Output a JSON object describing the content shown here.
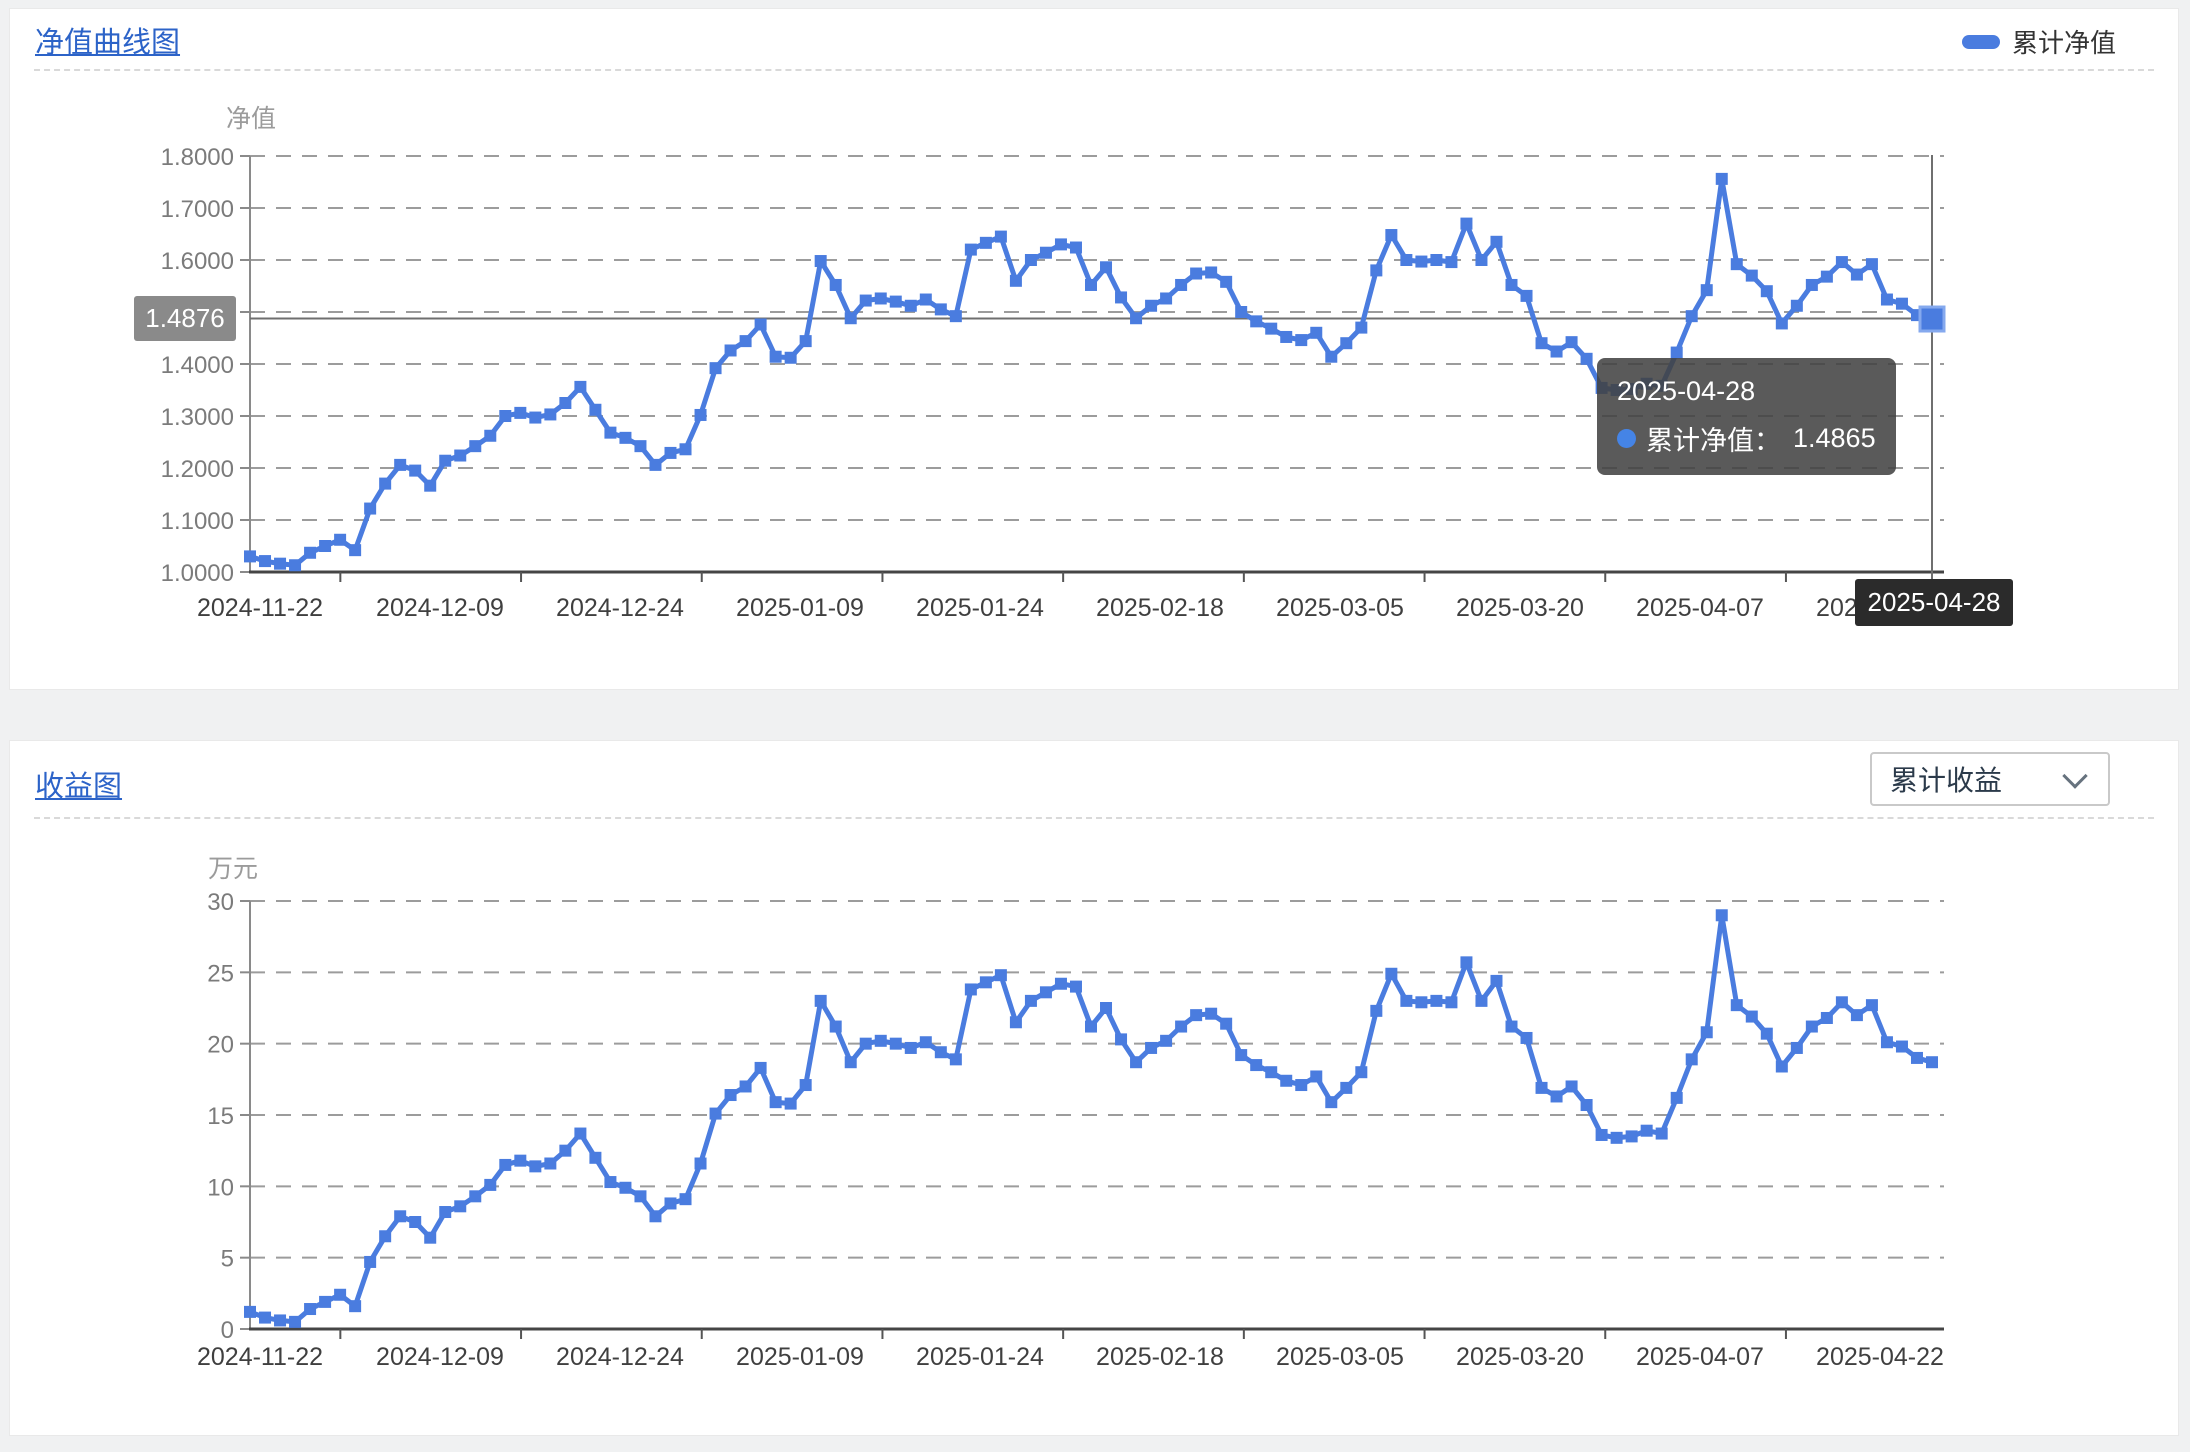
{
  "nav_panel": {
    "title": "净值曲线图",
    "legend_label": "累计净值",
    "y_axis_title": "净值",
    "y_pointer_label": "1.4876",
    "x_pointer_label": "2025-04-28",
    "tooltip": {
      "date": "2025-04-28",
      "series_label": "累计净值：",
      "value": "1.4865"
    }
  },
  "profit_panel": {
    "title": "收益图",
    "dropdown_value": "累计收益",
    "y_axis_title": "万元"
  },
  "colors": {
    "series_blue": "#4a7cdf",
    "highlight_marker_border": "#85a9ee",
    "link_blue": "#2c63c8",
    "tooltip_dot_blue": "#4584e6",
    "grid_gray": "#9c9c9c",
    "pointer_gray": "#6f6f6f",
    "y_badge_bg": "#8a8a8a",
    "x_badge_bg": "#2b2b2b"
  },
  "chart_data": [
    {
      "type": "line",
      "title": "净值曲线图",
      "xlabel": "",
      "ylabel": "净值",
      "ylim": [
        1.0,
        1.8
      ],
      "grid": "dashed-horizontal",
      "legend_position": "top-right",
      "legend": [
        "累计净值"
      ],
      "y_tick_labels": [
        "1.8000",
        "1.7000",
        "1.6000",
        "1.5000",
        "1.4000",
        "1.3000",
        "1.2000",
        "1.1000",
        "1.0000"
      ],
      "x_tick_labels": [
        "2024-11-22",
        "2024-12-09",
        "2024-12-24",
        "2025-01-09",
        "2025-01-24",
        "2025-02-18",
        "2025-03-05",
        "2025-03-20",
        "2025-04-07",
        "2025-04-22"
      ],
      "axis_pointer": {
        "y_value": 1.4876,
        "y_label": "1.4876",
        "x_label": "2025-04-28"
      },
      "highlighted_point": {
        "date": "2025-04-28",
        "value": 1.4865
      },
      "series": [
        {
          "name": "累计净值",
          "color": "#4a7cdf",
          "values": [
            1.03,
            1.021,
            1.016,
            1.013,
            1.037,
            1.05,
            1.062,
            1.042,
            1.122,
            1.17,
            1.206,
            1.195,
            1.166,
            1.214,
            1.224,
            1.242,
            1.262,
            1.3,
            1.306,
            1.297,
            1.303,
            1.325,
            1.356,
            1.312,
            1.268,
            1.258,
            1.242,
            1.206,
            1.229,
            1.236,
            1.302,
            1.392,
            1.426,
            1.444,
            1.476,
            1.414,
            1.412,
            1.444,
            1.598,
            1.552,
            1.488,
            1.522,
            1.526,
            1.52,
            1.512,
            1.524,
            1.505,
            1.492,
            1.62,
            1.633,
            1.645,
            1.56,
            1.6,
            1.614,
            1.63,
            1.624,
            1.552,
            1.586,
            1.528,
            1.488,
            1.512,
            1.526,
            1.552,
            1.574,
            1.576,
            1.558,
            1.5,
            1.482,
            1.468,
            1.452,
            1.446,
            1.46,
            1.414,
            1.44,
            1.47,
            1.58,
            1.648,
            1.6,
            1.597,
            1.6,
            1.596,
            1.67,
            1.6,
            1.635,
            1.552,
            1.531,
            1.44,
            1.424,
            1.442,
            1.41,
            1.354,
            1.35,
            1.352,
            1.362,
            1.358,
            1.422,
            1.492,
            1.542,
            1.756,
            1.592,
            1.57,
            1.54,
            1.478,
            1.512,
            1.552,
            1.568,
            1.596,
            1.572,
            1.592,
            1.524,
            1.516,
            1.494,
            1.4865
          ]
        }
      ]
    },
    {
      "type": "line",
      "title": "收益图",
      "xlabel": "",
      "ylabel": "万元",
      "ylim": [
        0,
        30
      ],
      "grid": "dashed-horizontal",
      "selected_mode": "累计收益",
      "y_tick_labels": [
        "30",
        "25",
        "20",
        "15",
        "10",
        "5",
        "0"
      ],
      "x_tick_labels": [
        "2024-11-22",
        "2024-12-09",
        "2024-12-24",
        "2025-01-09",
        "2025-01-24",
        "2025-02-18",
        "2025-03-05",
        "2025-03-20",
        "2025-04-07",
        "2025-04-22"
      ],
      "series": [
        {
          "name": "累计收益",
          "color": "#4a7cdf",
          "values": [
            1.2,
            0.8,
            0.6,
            0.5,
            1.4,
            1.9,
            2.4,
            1.6,
            4.7,
            6.5,
            7.9,
            7.5,
            6.4,
            8.2,
            8.6,
            9.3,
            10.1,
            11.5,
            11.8,
            11.4,
            11.6,
            12.5,
            13.7,
            12.0,
            10.3,
            9.9,
            9.3,
            7.9,
            8.8,
            9.1,
            11.6,
            15.1,
            16.4,
            17.0,
            18.3,
            15.9,
            15.8,
            17.1,
            23.0,
            21.2,
            18.7,
            20.0,
            20.2,
            20.0,
            19.7,
            20.1,
            19.4,
            18.9,
            23.8,
            24.3,
            24.8,
            21.5,
            23.0,
            23.6,
            24.2,
            24.0,
            21.2,
            22.5,
            20.3,
            18.7,
            19.7,
            20.2,
            21.2,
            22.0,
            22.1,
            21.4,
            19.2,
            18.5,
            18.0,
            17.4,
            17.1,
            17.7,
            15.9,
            16.9,
            18.0,
            22.3,
            24.9,
            23.0,
            22.9,
            23.0,
            22.9,
            25.7,
            23.0,
            24.4,
            21.2,
            20.4,
            16.9,
            16.3,
            17.0,
            15.7,
            13.6,
            13.4,
            13.5,
            13.9,
            13.7,
            16.2,
            18.9,
            20.8,
            29.0,
            22.7,
            21.9,
            20.7,
            18.4,
            19.7,
            21.2,
            21.8,
            22.9,
            22.0,
            22.7,
            20.1,
            19.8,
            19.0,
            18.7
          ]
        }
      ]
    }
  ]
}
